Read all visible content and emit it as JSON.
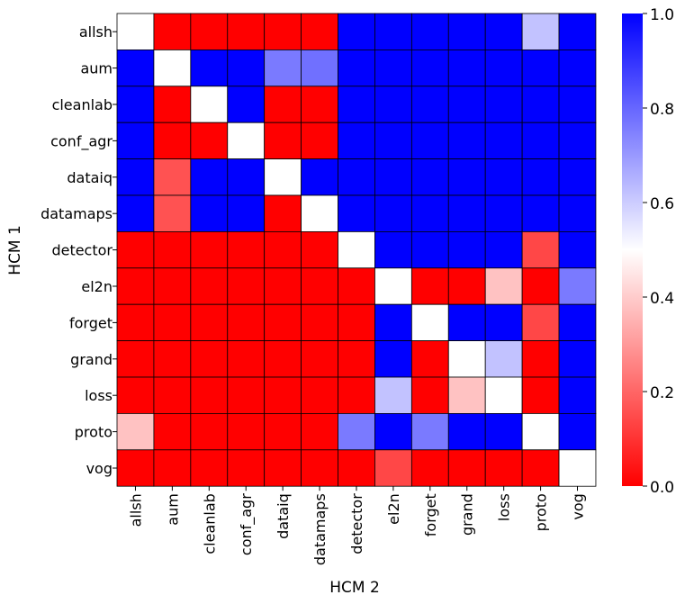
{
  "chart_data": {
    "type": "heatmap",
    "title": "",
    "xlabel": "HCM 2",
    "ylabel": "HCM 1",
    "rows": [
      "allsh",
      "aum",
      "cleanlab",
      "conf_agr",
      "dataiq",
      "datamaps",
      "detector",
      "el2n",
      "forget",
      "grand",
      "loss",
      "proto",
      "vog"
    ],
    "cols": [
      "allsh",
      "aum",
      "cleanlab",
      "conf_agr",
      "dataiq",
      "datamaps",
      "detector",
      "el2n",
      "forget",
      "grand",
      "loss",
      "proto",
      "vog"
    ],
    "values": [
      [
        0.5,
        0.0,
        0.0,
        0.0,
        0.0,
        0.0,
        1.0,
        1.0,
        1.0,
        1.0,
        1.0,
        0.62,
        1.0
      ],
      [
        1.0,
        0.5,
        1.0,
        1.0,
        0.76,
        0.78,
        1.0,
        1.0,
        1.0,
        1.0,
        1.0,
        1.0,
        1.0
      ],
      [
        1.0,
        0.0,
        0.5,
        1.0,
        0.0,
        0.0,
        1.0,
        1.0,
        1.0,
        1.0,
        1.0,
        1.0,
        1.0
      ],
      [
        1.0,
        0.0,
        0.0,
        0.5,
        0.0,
        0.0,
        1.0,
        1.0,
        1.0,
        1.0,
        1.0,
        1.0,
        1.0
      ],
      [
        1.0,
        0.16,
        1.0,
        1.0,
        0.5,
        1.0,
        1.0,
        1.0,
        1.0,
        1.0,
        1.0,
        1.0,
        1.0
      ],
      [
        1.0,
        0.16,
        1.0,
        1.0,
        0.0,
        0.5,
        1.0,
        1.0,
        1.0,
        1.0,
        1.0,
        1.0,
        1.0
      ],
      [
        0.0,
        0.0,
        0.0,
        0.0,
        0.0,
        0.0,
        0.5,
        1.0,
        1.0,
        1.0,
        1.0,
        0.14,
        1.0
      ],
      [
        0.0,
        0.0,
        0.0,
        0.0,
        0.0,
        0.0,
        0.0,
        0.5,
        0.0,
        0.0,
        0.38,
        0.0,
        0.76
      ],
      [
        0.0,
        0.0,
        0.0,
        0.0,
        0.0,
        0.0,
        0.0,
        1.0,
        0.5,
        1.0,
        1.0,
        0.14,
        1.0
      ],
      [
        0.0,
        0.0,
        0.0,
        0.0,
        0.0,
        0.0,
        0.0,
        1.0,
        0.0,
        0.5,
        0.62,
        0.0,
        1.0
      ],
      [
        0.0,
        0.0,
        0.0,
        0.0,
        0.0,
        0.0,
        0.0,
        0.62,
        0.0,
        0.38,
        0.5,
        0.0,
        1.0
      ],
      [
        0.38,
        0.0,
        0.0,
        0.0,
        0.0,
        0.0,
        0.76,
        1.0,
        0.76,
        1.0,
        1.0,
        0.5,
        1.0
      ],
      [
        0.0,
        0.0,
        0.0,
        0.0,
        0.0,
        0.0,
        0.0,
        0.14,
        0.0,
        0.0,
        0.0,
        0.0,
        0.5
      ]
    ],
    "colorbar": {
      "colormap": "bwr_r",
      "range": [
        0.0,
        1.0
      ],
      "ticks": [
        0.0,
        0.2,
        0.4,
        0.6,
        0.8,
        1.0
      ],
      "tick_labels": [
        "0.0",
        "0.2",
        "0.4",
        "0.6",
        "0.8",
        "1.0"
      ],
      "low_color": "#ff0000",
      "mid_color": "#ffffff",
      "high_color": "#0000ff"
    },
    "grid": true
  }
}
